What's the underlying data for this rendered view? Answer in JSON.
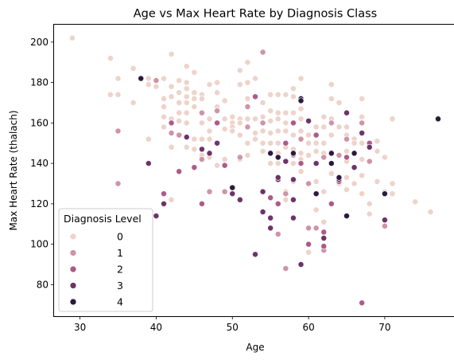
{
  "chart_data": {
    "type": "scatter",
    "title": "Age vs Max Heart Rate by Diagnosis Class",
    "xlabel": "Age",
    "ylabel": "Max Heart Rate (thalach)",
    "xlim": [
      26.6,
      79.4
    ],
    "ylim": [
      64.4,
      208.6
    ],
    "xticks": [
      30,
      40,
      50,
      60,
      70
    ],
    "yticks": [
      80,
      100,
      120,
      140,
      160,
      180,
      200
    ],
    "grid": false,
    "legend": {
      "title": "Diagnosis Level",
      "placement": "lower-left",
      "entries": [
        {
          "label": "0",
          "color": "#eed3ca"
        },
        {
          "label": "1",
          "color": "#cf93a8"
        },
        {
          "label": "2",
          "color": "#ac5b89"
        },
        {
          "label": "3",
          "color": "#6d3468"
        },
        {
          "label": "4",
          "color": "#2c1a3c"
        }
      ]
    },
    "series": [
      {
        "name": "0",
        "color": "#eed3ca",
        "points": [
          [
            29,
            202
          ],
          [
            34,
            192
          ],
          [
            34,
            174
          ],
          [
            35,
            182
          ],
          [
            35,
            174
          ],
          [
            37,
            187
          ],
          [
            37,
            170
          ],
          [
            39,
            182
          ],
          [
            39,
            179
          ],
          [
            39,
            152
          ],
          [
            40,
            181
          ],
          [
            40,
            178
          ],
          [
            41,
            182
          ],
          [
            41,
            172
          ],
          [
            41,
            168
          ],
          [
            41,
            163
          ],
          [
            41,
            158
          ],
          [
            42,
            194
          ],
          [
            42,
            178
          ],
          [
            42,
            173
          ],
          [
            42,
            162
          ],
          [
            42,
            148
          ],
          [
            42,
            122
          ],
          [
            43,
            181
          ],
          [
            43,
            175
          ],
          [
            43,
            170
          ],
          [
            43,
            165
          ],
          [
            43,
            161
          ],
          [
            43,
            154
          ],
          [
            44,
            188
          ],
          [
            44,
            180
          ],
          [
            44,
            177
          ],
          [
            44,
            173
          ],
          [
            44,
            170
          ],
          [
            44,
            165
          ],
          [
            44,
            160
          ],
          [
            44,
            148
          ],
          [
            45,
            185
          ],
          [
            45,
            175
          ],
          [
            45,
            172
          ],
          [
            45,
            168
          ],
          [
            45,
            152
          ],
          [
            45,
            147
          ],
          [
            46,
            174
          ],
          [
            46,
            172
          ],
          [
            46,
            160
          ],
          [
            46,
            152
          ],
          [
            46,
            144
          ],
          [
            47,
            179
          ],
          [
            47,
            162
          ],
          [
            47,
            156
          ],
          [
            47,
            152
          ],
          [
            47,
            143
          ],
          [
            48,
            180
          ],
          [
            48,
            175
          ],
          [
            48,
            168
          ],
          [
            48,
            150
          ],
          [
            48,
            139
          ],
          [
            49,
            171
          ],
          [
            49,
            162
          ],
          [
            49,
            157
          ],
          [
            49,
            142
          ],
          [
            50,
            163
          ],
          [
            50,
            160
          ],
          [
            50,
            158
          ],
          [
            50,
            156
          ],
          [
            51,
            186
          ],
          [
            51,
            179
          ],
          [
            51,
            162
          ],
          [
            51,
            160
          ],
          [
            51,
            154
          ],
          [
            51,
            142
          ],
          [
            52,
            190
          ],
          [
            52,
            180
          ],
          [
            52,
            172
          ],
          [
            52,
            162
          ],
          [
            52,
            158
          ],
          [
            52,
            150
          ],
          [
            52,
            144
          ],
          [
            53,
            182
          ],
          [
            53,
            173
          ],
          [
            53,
            162
          ],
          [
            53,
            155
          ],
          [
            53,
            152
          ],
          [
            54,
            170
          ],
          [
            54,
            163
          ],
          [
            54,
            160
          ],
          [
            54,
            156
          ],
          [
            54,
            150
          ],
          [
            54,
            146
          ],
          [
            55,
            174
          ],
          [
            55,
            166
          ],
          [
            55,
            161
          ],
          [
            55,
            155
          ],
          [
            55,
            150
          ],
          [
            55,
            145
          ],
          [
            55,
            140
          ],
          [
            56,
            174
          ],
          [
            56,
            165
          ],
          [
            56,
            162
          ],
          [
            56,
            156
          ],
          [
            56,
            150
          ],
          [
            56,
            145
          ],
          [
            56,
            140
          ],
          [
            57,
            174
          ],
          [
            57,
            165
          ],
          [
            57,
            160
          ],
          [
            57,
            156
          ],
          [
            57,
            148
          ],
          [
            57,
            126
          ],
          [
            57,
            122
          ],
          [
            58,
            177
          ],
          [
            58,
            173
          ],
          [
            58,
            165
          ],
          [
            58,
            160
          ],
          [
            58,
            154
          ],
          [
            58,
            147
          ],
          [
            58,
            140
          ],
          [
            58,
            131
          ],
          [
            59,
            182
          ],
          [
            59,
            167
          ],
          [
            59,
            162
          ],
          [
            59,
            156
          ],
          [
            59,
            145
          ],
          [
            59,
            142
          ],
          [
            59,
            136
          ],
          [
            60,
            161
          ],
          [
            60,
            154
          ],
          [
            60,
            150
          ],
          [
            60,
            144
          ],
          [
            60,
            96
          ],
          [
            61,
            158
          ],
          [
            61,
            150
          ],
          [
            61,
            146
          ],
          [
            61,
            131
          ],
          [
            61,
            117
          ],
          [
            62,
            163
          ],
          [
            62,
            158
          ],
          [
            62,
            150
          ],
          [
            62,
            145
          ],
          [
            62,
            126
          ],
          [
            62,
            111
          ],
          [
            63,
            179
          ],
          [
            63,
            172
          ],
          [
            63,
            162
          ],
          [
            63,
            154
          ],
          [
            63,
            140
          ],
          [
            63,
            135
          ],
          [
            64,
            170
          ],
          [
            64,
            158
          ],
          [
            64,
            144
          ],
          [
            64,
            130
          ],
          [
            65,
            158
          ],
          [
            65,
            154
          ],
          [
            65,
            146
          ],
          [
            65,
            141
          ],
          [
            65,
            133
          ],
          [
            65,
            127
          ],
          [
            66,
            152
          ],
          [
            66,
            150
          ],
          [
            66,
            138
          ],
          [
            66,
            130
          ],
          [
            67,
            172
          ],
          [
            67,
            163
          ],
          [
            67,
            150
          ],
          [
            67,
            142
          ],
          [
            67,
            134
          ],
          [
            67,
            125
          ],
          [
            68,
            150
          ],
          [
            68,
            120
          ],
          [
            68,
            115
          ],
          [
            69,
            151
          ],
          [
            69,
            146
          ],
          [
            69,
            131
          ],
          [
            70,
            143
          ],
          [
            70,
            126
          ],
          [
            71,
            162
          ],
          [
            71,
            130
          ],
          [
            71,
            125
          ],
          [
            74,
            121
          ],
          [
            76,
            116
          ]
        ]
      },
      {
        "name": "1",
        "color": "#cf93a8",
        "points": [
          [
            35,
            156
          ],
          [
            35,
            130
          ],
          [
            40,
            181
          ],
          [
            42,
            155
          ],
          [
            43,
            154
          ],
          [
            46,
            165
          ],
          [
            46,
            142
          ],
          [
            47,
            126
          ],
          [
            48,
            166
          ],
          [
            48,
            160
          ],
          [
            49,
            126
          ],
          [
            51,
            143
          ],
          [
            52,
            168
          ],
          [
            52,
            158
          ],
          [
            54,
            195
          ],
          [
            54,
            160
          ],
          [
            56,
            105
          ],
          [
            57,
            88
          ],
          [
            57,
            125
          ],
          [
            58,
            144
          ],
          [
            59,
            152
          ],
          [
            60,
            108
          ],
          [
            60,
            130
          ],
          [
            61,
            108
          ],
          [
            62,
            143
          ],
          [
            62,
            97
          ],
          [
            63,
            160
          ],
          [
            64,
            144
          ],
          [
            65,
            152
          ],
          [
            67,
            160
          ],
          [
            68,
            141
          ],
          [
            70,
            109
          ]
        ]
      },
      {
        "name": "2",
        "color": "#ac5b89",
        "points": [
          [
            41,
            125
          ],
          [
            42,
            160
          ],
          [
            43,
            136
          ],
          [
            45,
            138
          ],
          [
            46,
            120
          ],
          [
            48,
            160
          ],
          [
            49,
            139
          ],
          [
            53,
            173
          ],
          [
            54,
            126
          ],
          [
            55,
            123
          ],
          [
            56,
            120
          ],
          [
            57,
            150
          ],
          [
            58,
            160
          ],
          [
            59,
            140
          ],
          [
            60,
            100
          ],
          [
            61,
            154
          ],
          [
            62,
            106
          ],
          [
            62,
            99
          ],
          [
            63,
            120
          ],
          [
            64,
            131
          ],
          [
            65,
            143
          ],
          [
            67,
            71
          ],
          [
            68,
            150
          ]
        ]
      },
      {
        "name": "3",
        "color": "#6d3468",
        "points": [
          [
            39,
            140
          ],
          [
            40,
            114
          ],
          [
            41,
            120
          ],
          [
            44,
            153
          ],
          [
            46,
            147
          ],
          [
            47,
            145
          ],
          [
            48,
            150
          ],
          [
            50,
            125
          ],
          [
            51,
            122
          ],
          [
            53,
            95
          ],
          [
            54,
            116
          ],
          [
            54,
            126
          ],
          [
            55,
            108
          ],
          [
            55,
            113
          ],
          [
            56,
            132
          ],
          [
            56,
            133
          ],
          [
            57,
            141
          ],
          [
            58,
            113
          ],
          [
            58,
            132
          ],
          [
            58,
            122
          ],
          [
            59,
            90
          ],
          [
            60,
            161
          ],
          [
            61,
            140
          ],
          [
            62,
            103
          ],
          [
            64,
            132
          ],
          [
            65,
            165
          ],
          [
            66,
            138
          ],
          [
            67,
            155
          ],
          [
            68,
            148
          ],
          [
            70,
            112
          ]
        ]
      },
      {
        "name": "4",
        "color": "#2c1a3c",
        "points": [
          [
            38,
            182
          ],
          [
            50,
            128
          ],
          [
            55,
            145
          ],
          [
            56,
            143
          ],
          [
            58,
            145
          ],
          [
            59,
            172
          ],
          [
            59,
            171
          ],
          [
            61,
            125
          ],
          [
            63,
            145
          ],
          [
            63,
            140
          ],
          [
            64,
            133
          ],
          [
            65,
            114
          ],
          [
            66,
            145
          ],
          [
            70,
            125
          ],
          [
            77,
            162
          ]
        ]
      }
    ]
  }
}
